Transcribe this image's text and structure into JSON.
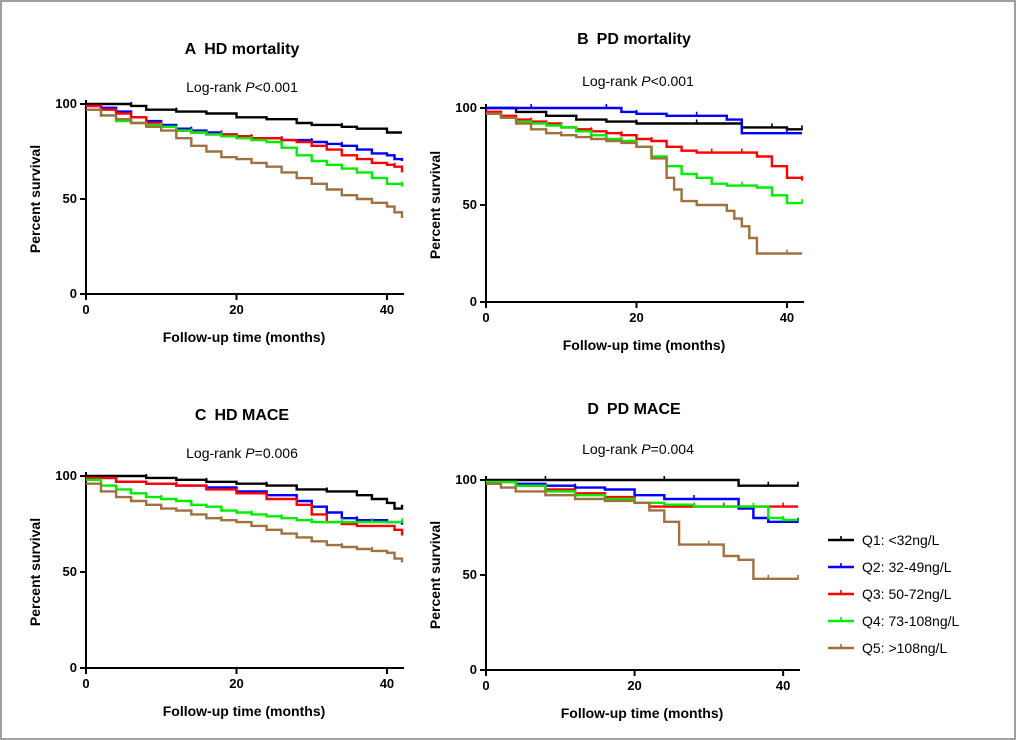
{
  "chart_data": [
    {
      "type": "line",
      "panel": "A",
      "title": "HD mortality",
      "test_prefix": "Log-rank ",
      "test_p": "P",
      "test_value": "<0.001",
      "xlabel": "Follow-up time (months)",
      "ylabel": "Percent survival",
      "xlim": [
        0,
        42
      ],
      "ylim": [
        0,
        100
      ],
      "xticks": [
        0,
        20,
        40
      ],
      "yticks": [
        0,
        50,
        100
      ],
      "series": [
        {
          "name": "Q1: <32ng/L",
          "color": "#000000",
          "x": [
            0,
            6,
            8,
            12,
            16,
            20,
            24,
            28,
            30,
            34,
            36,
            40,
            42
          ],
          "y": [
            100,
            99,
            97,
            96,
            95,
            93,
            92,
            90,
            89,
            88,
            87,
            85,
            85
          ]
        },
        {
          "name": "Q2: 32-49ng/L",
          "color": "#0000ff",
          "x": [
            0,
            2,
            4,
            6,
            8,
            10,
            12,
            14,
            16,
            18,
            20,
            22,
            24,
            26,
            28,
            30,
            32,
            34,
            36,
            38,
            40,
            41,
            42
          ],
          "y": [
            99,
            98,
            96,
            93,
            91,
            89,
            87,
            86,
            85,
            84,
            83,
            82,
            82,
            81,
            81,
            80,
            79,
            78,
            76,
            74,
            73,
            71,
            70
          ]
        },
        {
          "name": "Q3: 50-72ng/L",
          "color": "#ff0000",
          "x": [
            0,
            2,
            4,
            6,
            8,
            10,
            12,
            14,
            16,
            18,
            20,
            22,
            24,
            26,
            28,
            30,
            32,
            34,
            36,
            38,
            40,
            41,
            42
          ],
          "y": [
            99,
            97,
            95,
            93,
            90,
            88,
            86,
            85,
            84,
            84,
            83,
            82,
            82,
            81,
            80,
            78,
            76,
            73,
            71,
            69,
            68,
            67,
            64
          ]
        },
        {
          "name": "Q4: 73-108ng/L",
          "color": "#00ee00",
          "x": [
            0,
            2,
            4,
            6,
            8,
            10,
            12,
            14,
            16,
            18,
            20,
            22,
            24,
            26,
            28,
            30,
            32,
            34,
            36,
            38,
            40,
            42
          ],
          "y": [
            97,
            94,
            91,
            90,
            89,
            88,
            86,
            85,
            84,
            83,
            82,
            81,
            80,
            77,
            73,
            70,
            68,
            66,
            64,
            61,
            58,
            57
          ]
        },
        {
          "name": "Q5: >108ng/L",
          "color": "#a07040",
          "x": [
            0,
            2,
            4,
            6,
            8,
            10,
            12,
            14,
            16,
            18,
            20,
            22,
            24,
            26,
            28,
            30,
            32,
            34,
            36,
            38,
            40,
            41,
            42
          ],
          "y": [
            97,
            94,
            92,
            90,
            88,
            86,
            82,
            78,
            75,
            72,
            71,
            69,
            67,
            64,
            61,
            58,
            55,
            52,
            50,
            48,
            46,
            43,
            40
          ]
        }
      ]
    },
    {
      "type": "line",
      "panel": "B",
      "title": "PD mortality",
      "test_prefix": "Log-rank ",
      "test_p": "P",
      "test_value": "<0.001",
      "xlabel": "Follow-up time (months)",
      "ylabel": "Percent survival",
      "xlim": [
        0,
        42
      ],
      "ylim": [
        0,
        100
      ],
      "xticks": [
        0,
        20,
        40
      ],
      "yticks": [
        0,
        50,
        100
      ],
      "series": [
        {
          "name": "Q1: <32ng/L",
          "color": "#000000",
          "x": [
            0,
            4,
            8,
            12,
            16,
            20,
            24,
            28,
            32,
            34,
            36,
            38,
            40,
            42
          ],
          "y": [
            100,
            98,
            96,
            94,
            93,
            92,
            92,
            92,
            92,
            90,
            90,
            90,
            89,
            89
          ]
        },
        {
          "name": "Q2: 32-49ng/L",
          "color": "#0000ff",
          "x": [
            0,
            6,
            12,
            16,
            18,
            20,
            24,
            28,
            32,
            34,
            36,
            40,
            42
          ],
          "y": [
            100,
            100,
            100,
            100,
            98,
            97,
            96,
            96,
            94,
            87,
            87,
            87,
            87
          ]
        },
        {
          "name": "Q3: 50-72ng/L",
          "color": "#ff0000",
          "x": [
            0,
            2,
            4,
            6,
            8,
            10,
            12,
            14,
            16,
            18,
            20,
            22,
            24,
            26,
            28,
            30,
            32,
            34,
            36,
            38,
            40,
            42
          ],
          "y": [
            98,
            96,
            94,
            93,
            92,
            90,
            89,
            88,
            87,
            86,
            84,
            83,
            80,
            78,
            77,
            77,
            77,
            77,
            75,
            70,
            64,
            63
          ]
        },
        {
          "name": "Q4: 73-108ng/L",
          "color": "#00ee00",
          "x": [
            0,
            2,
            4,
            6,
            8,
            10,
            12,
            14,
            16,
            18,
            20,
            22,
            24,
            26,
            28,
            30,
            32,
            34,
            36,
            38,
            40,
            42
          ],
          "y": [
            97,
            95,
            93,
            92,
            91,
            90,
            88,
            86,
            84,
            83,
            80,
            75,
            70,
            66,
            64,
            61,
            60,
            60,
            59,
            55,
            51,
            51
          ]
        },
        {
          "name": "Q5: >108ng/L",
          "color": "#a07040",
          "x": [
            0,
            2,
            4,
            6,
            8,
            10,
            12,
            14,
            16,
            18,
            20,
            22,
            24,
            25,
            26,
            28,
            30,
            32,
            33,
            34,
            35,
            36,
            38,
            40,
            42
          ],
          "y": [
            97,
            95,
            92,
            89,
            87,
            86,
            85,
            84,
            83,
            82,
            80,
            74,
            64,
            58,
            52,
            50,
            50,
            47,
            43,
            39,
            33,
            25,
            25,
            25,
            25
          ]
        }
      ]
    },
    {
      "type": "line",
      "panel": "C",
      "title": "HD MACE",
      "test_prefix": "Log-rank ",
      "test_p": "P",
      "test_value": "=0.006",
      "xlabel": "Follow-up time (months)",
      "ylabel": "Percent survival",
      "xlim": [
        0,
        42
      ],
      "ylim": [
        0,
        100
      ],
      "xticks": [
        0,
        20,
        40
      ],
      "yticks": [
        0,
        50,
        100
      ],
      "series": [
        {
          "name": "Q1: <32ng/L",
          "color": "#000000",
          "x": [
            0,
            8,
            12,
            16,
            20,
            24,
            28,
            32,
            36,
            38,
            40,
            41,
            42
          ],
          "y": [
            100,
            99,
            98,
            97,
            96,
            95,
            93,
            92,
            90,
            88,
            86,
            83,
            85
          ]
        },
        {
          "name": "Q2: 32-49ng/L",
          "color": "#0000ff",
          "x": [
            0,
            4,
            8,
            12,
            16,
            20,
            24,
            28,
            30,
            32,
            34,
            36,
            40,
            42
          ],
          "y": [
            99,
            97,
            96,
            95,
            94,
            92,
            90,
            87,
            84,
            81,
            78,
            77,
            76,
            75
          ]
        },
        {
          "name": "Q3: 50-72ng/L",
          "color": "#ff0000",
          "x": [
            0,
            4,
            8,
            12,
            16,
            20,
            24,
            28,
            30,
            32,
            34,
            36,
            40,
            41,
            42
          ],
          "y": [
            99,
            97,
            96,
            95,
            93,
            91,
            88,
            85,
            80,
            76,
            75,
            74,
            74,
            72,
            69
          ]
        },
        {
          "name": "Q4: 73-108ng/L",
          "color": "#00ee00",
          "x": [
            0,
            2,
            4,
            6,
            8,
            10,
            12,
            14,
            16,
            18,
            20,
            22,
            24,
            26,
            28,
            30,
            32,
            34,
            36,
            38,
            40,
            42
          ],
          "y": [
            98,
            95,
            93,
            91,
            89,
            88,
            87,
            85,
            84,
            82,
            81,
            80,
            79,
            78,
            77,
            76,
            76,
            76,
            76,
            76,
            76,
            76
          ]
        },
        {
          "name": "Q5: >108ng/L",
          "color": "#a07040",
          "x": [
            0,
            2,
            4,
            6,
            8,
            10,
            12,
            14,
            16,
            18,
            20,
            22,
            24,
            26,
            28,
            30,
            32,
            34,
            36,
            38,
            40,
            41,
            42
          ],
          "y": [
            96,
            92,
            89,
            87,
            85,
            83,
            82,
            80,
            78,
            77,
            76,
            74,
            72,
            70,
            68,
            66,
            64,
            63,
            62,
            61,
            60,
            57,
            55
          ]
        }
      ]
    },
    {
      "type": "line",
      "panel": "D",
      "title": "PD MACE",
      "test_prefix": "Log-rank ",
      "test_p": "P",
      "test_value": "=0.004",
      "xlabel": "Follow-up time (months)",
      "ylabel": "Percent survival",
      "xlim": [
        0,
        42
      ],
      "ylim": [
        0,
        100
      ],
      "xticks": [
        0,
        20,
        40
      ],
      "yticks": [
        0,
        50,
        100
      ],
      "series": [
        {
          "name": "Q1: <32ng/L",
          "color": "#000000",
          "x": [
            0,
            8,
            16,
            24,
            32,
            34,
            36,
            38,
            40,
            42
          ],
          "y": [
            100,
            100,
            100,
            100,
            100,
            97,
            97,
            97,
            97,
            97
          ]
        },
        {
          "name": "Q2: 32-49ng/L",
          "color": "#0000ff",
          "x": [
            0,
            4,
            8,
            12,
            16,
            20,
            24,
            28,
            32,
            34,
            36,
            38,
            40,
            42
          ],
          "y": [
            99,
            98,
            97,
            96,
            95,
            92,
            90,
            90,
            90,
            85,
            80,
            78,
            78,
            78
          ]
        },
        {
          "name": "Q3: 50-72ng/L",
          "color": "#ff0000",
          "x": [
            0,
            4,
            8,
            12,
            16,
            20,
            22,
            24,
            28,
            32,
            36,
            40,
            42
          ],
          "y": [
            99,
            97,
            95,
            93,
            91,
            88,
            86,
            86,
            86,
            86,
            86,
            86,
            86
          ]
        },
        {
          "name": "Q4: 73-108ng/L",
          "color": "#00ee00",
          "x": [
            0,
            4,
            8,
            12,
            16,
            20,
            24,
            28,
            32,
            36,
            38,
            40,
            42
          ],
          "y": [
            99,
            97,
            94,
            92,
            90,
            88,
            87,
            86,
            86,
            86,
            80,
            79,
            79
          ]
        },
        {
          "name": "Q5: >108ng/L",
          "color": "#a07040",
          "x": [
            0,
            2,
            4,
            8,
            12,
            16,
            20,
            22,
            24,
            26,
            28,
            30,
            32,
            34,
            36,
            38,
            40,
            42
          ],
          "y": [
            98,
            96,
            94,
            92,
            90,
            89,
            88,
            84,
            78,
            66,
            66,
            66,
            60,
            58,
            48,
            48,
            48,
            48
          ]
        }
      ]
    }
  ],
  "legend": [
    {
      "label": "Q1: <32ng/L",
      "color": "#000000"
    },
    {
      "label": "Q2: 32-49ng/L",
      "color": "#0000ff"
    },
    {
      "label": "Q3: 50-72ng/L",
      "color": "#ff0000"
    },
    {
      "label": "Q4: 73-108ng/L",
      "color": "#00ee00"
    },
    {
      "label": "Q5: >108ng/L",
      "color": "#a07040"
    }
  ]
}
